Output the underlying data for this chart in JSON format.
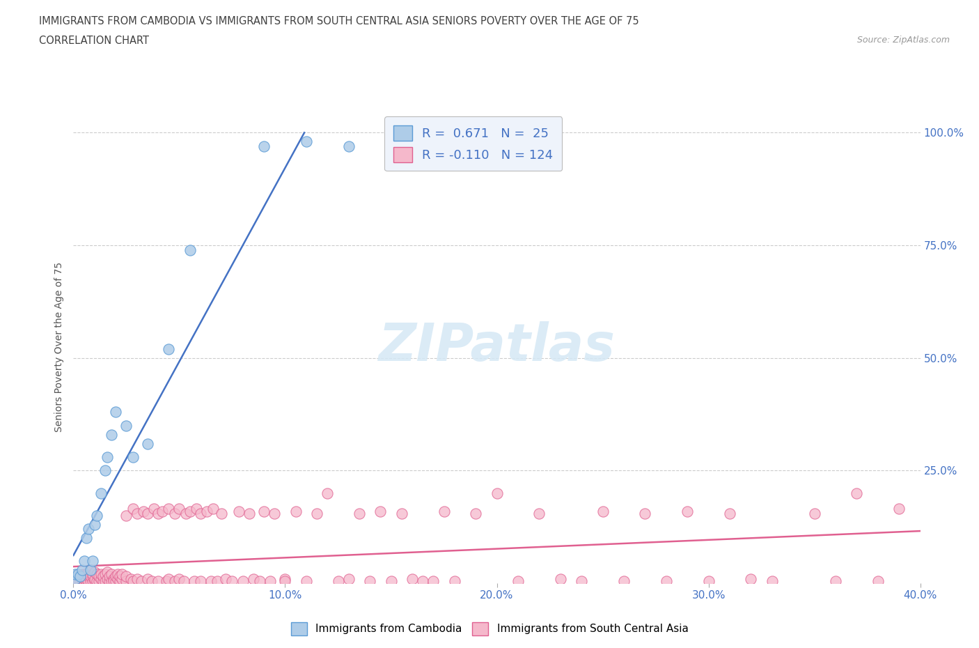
{
  "title_line1": "IMMIGRANTS FROM CAMBODIA VS IMMIGRANTS FROM SOUTH CENTRAL ASIA SENIORS POVERTY OVER THE AGE OF 75",
  "title_line2": "CORRELATION CHART",
  "source_text": "Source: ZipAtlas.com",
  "ylabel_text": "Seniors Poverty Over the Age of 75",
  "xlim": [
    0.0,
    0.4
  ],
  "ylim": [
    0.0,
    1.05
  ],
  "xtick_values": [
    0.0,
    0.1,
    0.2,
    0.3,
    0.4
  ],
  "xtick_labels": [
    "0.0%",
    "10.0%",
    "20.0%",
    "30.0%",
    "40.0%"
  ],
  "ytick_values": [
    0.25,
    0.5,
    0.75,
    1.0
  ],
  "ytick_labels": [
    "25.0%",
    "50.0%",
    "75.0%",
    "100.0%"
  ],
  "blue_color": "#aecce8",
  "pink_color": "#f5b8cb",
  "blue_edge_color": "#5b9bd5",
  "pink_edge_color": "#e06090",
  "blue_line_color": "#4472c4",
  "pink_line_color": "#e06090",
  "legend_text_color": "#4472c4",
  "grid_color": "#cccccc",
  "title_color": "#404040",
  "watermark_color": "#d5e8f5",
  "cambodia_points": [
    [
      0.001,
      0.01
    ],
    [
      0.001,
      0.02
    ],
    [
      0.002,
      0.02
    ],
    [
      0.003,
      0.015
    ],
    [
      0.004,
      0.03
    ],
    [
      0.005,
      0.05
    ],
    [
      0.006,
      0.1
    ],
    [
      0.007,
      0.12
    ],
    [
      0.008,
      0.03
    ],
    [
      0.009,
      0.05
    ],
    [
      0.01,
      0.13
    ],
    [
      0.011,
      0.15
    ],
    [
      0.013,
      0.2
    ],
    [
      0.015,
      0.25
    ],
    [
      0.016,
      0.28
    ],
    [
      0.018,
      0.33
    ],
    [
      0.02,
      0.38
    ],
    [
      0.025,
      0.35
    ],
    [
      0.028,
      0.28
    ],
    [
      0.035,
      0.31
    ],
    [
      0.045,
      0.52
    ],
    [
      0.055,
      0.74
    ],
    [
      0.09,
      0.97
    ],
    [
      0.11,
      0.98
    ],
    [
      0.13,
      0.97
    ]
  ],
  "sca_points": [
    [
      0.001,
      0.005
    ],
    [
      0.002,
      0.008
    ],
    [
      0.002,
      0.02
    ],
    [
      0.003,
      0.005
    ],
    [
      0.003,
      0.015
    ],
    [
      0.004,
      0.005
    ],
    [
      0.004,
      0.01
    ],
    [
      0.004,
      0.02
    ],
    [
      0.005,
      0.005
    ],
    [
      0.005,
      0.01
    ],
    [
      0.005,
      0.02
    ],
    [
      0.006,
      0.005
    ],
    [
      0.006,
      0.01
    ],
    [
      0.006,
      0.02
    ],
    [
      0.007,
      0.005
    ],
    [
      0.007,
      0.015
    ],
    [
      0.007,
      0.025
    ],
    [
      0.008,
      0.005
    ],
    [
      0.008,
      0.015
    ],
    [
      0.008,
      0.03
    ],
    [
      0.009,
      0.005
    ],
    [
      0.009,
      0.015
    ],
    [
      0.009,
      0.02
    ],
    [
      0.01,
      0.005
    ],
    [
      0.01,
      0.01
    ],
    [
      0.01,
      0.025
    ],
    [
      0.011,
      0.005
    ],
    [
      0.011,
      0.02
    ],
    [
      0.012,
      0.005
    ],
    [
      0.012,
      0.015
    ],
    [
      0.013,
      0.01
    ],
    [
      0.013,
      0.02
    ],
    [
      0.014,
      0.005
    ],
    [
      0.014,
      0.015
    ],
    [
      0.015,
      0.005
    ],
    [
      0.015,
      0.02
    ],
    [
      0.016,
      0.01
    ],
    [
      0.016,
      0.025
    ],
    [
      0.017,
      0.005
    ],
    [
      0.017,
      0.015
    ],
    [
      0.018,
      0.005
    ],
    [
      0.018,
      0.02
    ],
    [
      0.019,
      0.01
    ],
    [
      0.019,
      0.005
    ],
    [
      0.02,
      0.005
    ],
    [
      0.02,
      0.015
    ],
    [
      0.021,
      0.01
    ],
    [
      0.021,
      0.02
    ],
    [
      0.022,
      0.005
    ],
    [
      0.022,
      0.015
    ],
    [
      0.023,
      0.01
    ],
    [
      0.023,
      0.02
    ],
    [
      0.025,
      0.005
    ],
    [
      0.025,
      0.015
    ],
    [
      0.025,
      0.15
    ],
    [
      0.027,
      0.01
    ],
    [
      0.028,
      0.005
    ],
    [
      0.028,
      0.165
    ],
    [
      0.03,
      0.01
    ],
    [
      0.03,
      0.155
    ],
    [
      0.032,
      0.005
    ],
    [
      0.033,
      0.16
    ],
    [
      0.035,
      0.01
    ],
    [
      0.035,
      0.155
    ],
    [
      0.037,
      0.005
    ],
    [
      0.038,
      0.165
    ],
    [
      0.04,
      0.005
    ],
    [
      0.04,
      0.155
    ],
    [
      0.042,
      0.16
    ],
    [
      0.044,
      0.005
    ],
    [
      0.045,
      0.01
    ],
    [
      0.045,
      0.165
    ],
    [
      0.048,
      0.005
    ],
    [
      0.048,
      0.155
    ],
    [
      0.05,
      0.01
    ],
    [
      0.05,
      0.165
    ],
    [
      0.052,
      0.005
    ],
    [
      0.053,
      0.155
    ],
    [
      0.055,
      0.16
    ],
    [
      0.057,
      0.005
    ],
    [
      0.058,
      0.165
    ],
    [
      0.06,
      0.005
    ],
    [
      0.06,
      0.155
    ],
    [
      0.063,
      0.16
    ],
    [
      0.065,
      0.005
    ],
    [
      0.066,
      0.165
    ],
    [
      0.068,
      0.005
    ],
    [
      0.07,
      0.155
    ],
    [
      0.072,
      0.01
    ],
    [
      0.075,
      0.005
    ],
    [
      0.078,
      0.16
    ],
    [
      0.08,
      0.005
    ],
    [
      0.083,
      0.155
    ],
    [
      0.085,
      0.01
    ],
    [
      0.088,
      0.005
    ],
    [
      0.09,
      0.16
    ],
    [
      0.093,
      0.005
    ],
    [
      0.095,
      0.155
    ],
    [
      0.1,
      0.01
    ],
    [
      0.1,
      0.005
    ],
    [
      0.105,
      0.16
    ],
    [
      0.11,
      0.005
    ],
    [
      0.115,
      0.155
    ],
    [
      0.12,
      0.2
    ],
    [
      0.125,
      0.005
    ],
    [
      0.13,
      0.01
    ],
    [
      0.135,
      0.155
    ],
    [
      0.14,
      0.005
    ],
    [
      0.145,
      0.16
    ],
    [
      0.15,
      0.005
    ],
    [
      0.155,
      0.155
    ],
    [
      0.16,
      0.01
    ],
    [
      0.165,
      0.005
    ],
    [
      0.17,
      0.005
    ],
    [
      0.175,
      0.16
    ],
    [
      0.18,
      0.005
    ],
    [
      0.19,
      0.155
    ],
    [
      0.2,
      0.2
    ],
    [
      0.21,
      0.005
    ],
    [
      0.22,
      0.155
    ],
    [
      0.23,
      0.01
    ],
    [
      0.24,
      0.005
    ],
    [
      0.25,
      0.16
    ],
    [
      0.26,
      0.005
    ],
    [
      0.27,
      0.155
    ],
    [
      0.28,
      0.005
    ],
    [
      0.29,
      0.16
    ],
    [
      0.3,
      0.005
    ],
    [
      0.31,
      0.155
    ],
    [
      0.32,
      0.01
    ],
    [
      0.33,
      0.005
    ],
    [
      0.35,
      0.155
    ],
    [
      0.36,
      0.005
    ],
    [
      0.37,
      0.2
    ],
    [
      0.38,
      0.005
    ],
    [
      0.39,
      0.165
    ]
  ]
}
